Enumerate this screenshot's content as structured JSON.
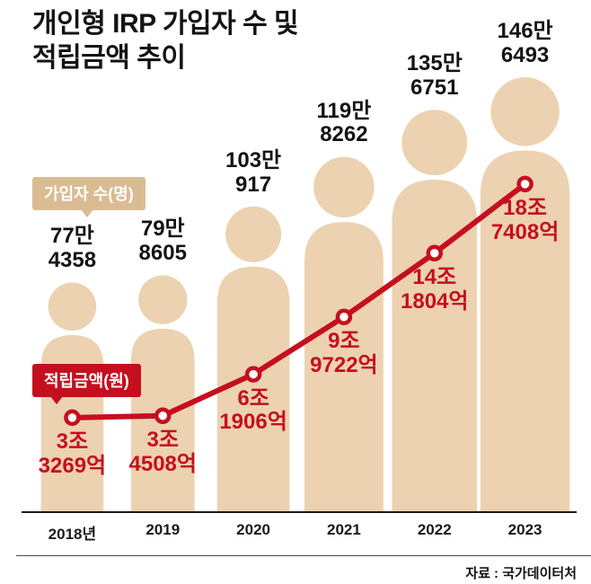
{
  "title": {
    "line1": "개인형 IRP 가입자 수 및",
    "line2": "적립금액 추이"
  },
  "legend": {
    "subscribers": "가입자 수(명)",
    "amount": "적립금액(원)"
  },
  "source": "자료 : 국가데이터처",
  "colors": {
    "figure": "#ecd2b0",
    "accent_red": "#c50f1f",
    "badge_tan": "#d9bc92",
    "text_dark": "#141414"
  },
  "chart_data": {
    "type": "pictogram-bar-line-combo",
    "title": "개인형 IRP 가입자 수 및 적립금액 추이",
    "grid": false,
    "legend_position": "left-badges",
    "categories": [
      "2018년",
      "2019",
      "2020",
      "2021",
      "2022",
      "2023"
    ],
    "series": [
      {
        "name": "가입자 수(명)",
        "type": "pictogram-bar",
        "unit": "명",
        "values": [
          774358,
          798605,
          1030917,
          1198262,
          1356751,
          1466493
        ],
        "labels": [
          [
            "77만",
            "4358"
          ],
          [
            "79만",
            "8605"
          ],
          [
            "103만",
            "917"
          ],
          [
            "119만",
            "8262"
          ],
          [
            "135만",
            "6751"
          ],
          [
            "146만",
            "6493"
          ]
        ]
      },
      {
        "name": "적립금액(원)",
        "type": "line",
        "unit": "억원",
        "values": [
          33269,
          34508,
          61906,
          99722,
          141804,
          187408
        ],
        "labels": [
          [
            "3조",
            "3269억"
          ],
          [
            "3조",
            "4508억"
          ],
          [
            "6조",
            "1906억"
          ],
          [
            "9조",
            "9722억"
          ],
          [
            "14조",
            "1804억"
          ],
          [
            "18조",
            "7408억"
          ]
        ]
      }
    ],
    "source": "자료 : 국가데이터처"
  }
}
